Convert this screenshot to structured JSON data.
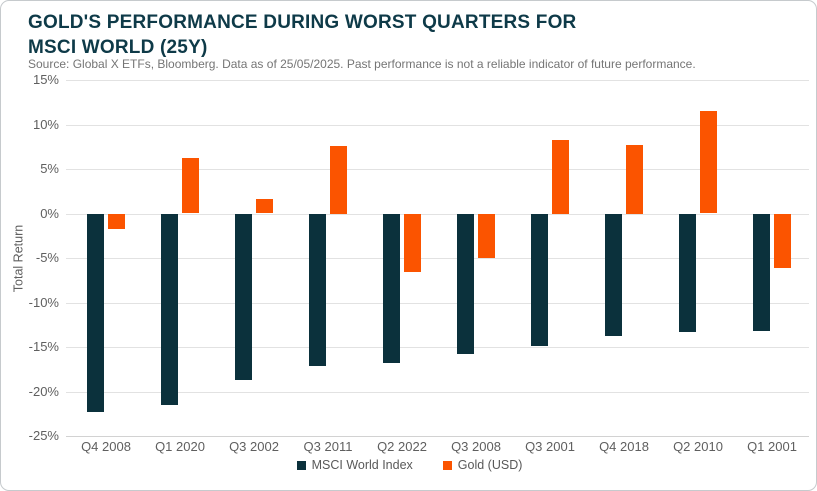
{
  "card": {
    "title_line1": "GOLD'S PERFORMANCE DURING WORST QUARTERS FOR",
    "title_line2": "MSCI WORLD (25Y)",
    "source": "Source: Global X ETFs, Bloomberg. Data as of 25/05/2025. Past performance is not a reliable indicator of future performance."
  },
  "chart_data": {
    "type": "bar",
    "title": "GOLD'S PERFORMANCE DURING WORST QUARTERS FOR MSCI WORLD (25Y)",
    "source": "Source: Global X ETFs, Bloomberg. Data as of 25/05/2025. Past performance is not a reliable indicator of future performance.",
    "xlabel": "",
    "ylabel": "Total Return",
    "ylim": [
      -25,
      15
    ],
    "ytick_step": 5,
    "ytick_labels": [
      "15%",
      "10%",
      "5%",
      "0%",
      "-5%",
      "-10%",
      "-15%",
      "-20%",
      "-25%"
    ],
    "ytick_values": [
      15,
      10,
      5,
      0,
      -5,
      -10,
      -15,
      -20,
      -25
    ],
    "grid": true,
    "legend_position": "bottom",
    "categories": [
      "Q4 2008",
      "Q1 2020",
      "Q3 2002",
      "Q3 2011",
      "Q2 2022",
      "Q3 2008",
      "Q3 2001",
      "Q4 2018",
      "Q2 2010",
      "Q1 2001"
    ],
    "series": [
      {
        "name": "MSCI World Index",
        "color": "#0b313c",
        "values": [
          -22.3,
          -21.5,
          -18.7,
          -17.1,
          -16.7,
          -15.7,
          -14.8,
          -13.7,
          -13.3,
          -13.1
        ]
      },
      {
        "name": "Gold (USD)",
        "color": "#fb5400",
        "values": [
          -1.7,
          6.2,
          1.6,
          7.6,
          -6.5,
          -4.9,
          8.3,
          7.7,
          11.5,
          -6.1
        ]
      }
    ]
  },
  "colors": {
    "title_text": "#0e3a48",
    "axis_text": "#5f5f5f",
    "source_text": "#757575",
    "gridline": "#e2e2e2",
    "card_border": "#c6cacd",
    "background": "#ffffff",
    "msci_bar": "#0b313c",
    "gold_bar": "#fb5400"
  }
}
